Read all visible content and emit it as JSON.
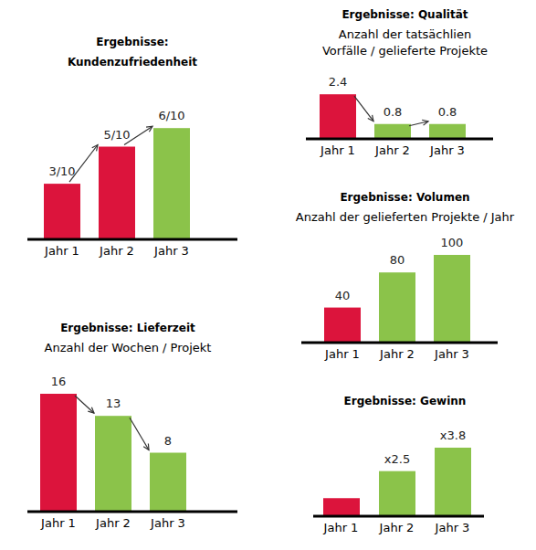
{
  "chart_data": [
    {
      "type": "bar",
      "title": "Ergebnisse:\nKundenzufriedenheit",
      "categories": [
        "Jahr 1",
        "Jahr 2",
        "Jahr 3"
      ],
      "values": [
        3,
        5,
        6
      ],
      "value_labels": [
        "3/10",
        "5/10",
        "6/10"
      ],
      "colors": [
        "#dc143c",
        "#dc143c",
        "#8bc34a"
      ],
      "ylim": [
        0,
        10
      ],
      "data_labels": true,
      "tick_labels": "x"
    },
    {
      "type": "bar",
      "title": "Ergebnisse: Qualität",
      "subtitle": "Anzahl der tatsächlien\nVorfälle / gelieferte Projekte",
      "categories": [
        "Jahr 1",
        "Jahr 2",
        "Jahr 3"
      ],
      "values": [
        2.4,
        0.8,
        0.8
      ],
      "colors": [
        "#dc143c",
        "#8bc34a",
        "#8bc34a"
      ],
      "ylim": [
        0,
        3
      ],
      "data_labels": true,
      "tick_labels": "x"
    },
    {
      "type": "bar",
      "title": "Ergebnisse: Volumen",
      "subtitle": "Anzahl der gelieferten Projekte / Jahr",
      "categories": [
        "Jahr 1",
        "Jahr 2",
        "Jahr 3"
      ],
      "values": [
        40,
        80,
        100
      ],
      "colors": [
        "#dc143c",
        "#8bc34a",
        "#8bc34a"
      ],
      "ylim": [
        0,
        100
      ],
      "data_labels": true,
      "tick_labels": "x"
    },
    {
      "type": "bar",
      "title": "Ergebnisse: Lieferzeit",
      "subtitle": "Anzahl der Wochen / Projekt",
      "categories": [
        "Jahr 1",
        "Jahr 2",
        "Jahr 3"
      ],
      "values": [
        16,
        13,
        8
      ],
      "colors": [
        "#dc143c",
        "#8bc34a",
        "#8bc34a"
      ],
      "ylim": [
        0,
        16
      ],
      "data_labels": true,
      "tick_labels": "x"
    },
    {
      "type": "bar",
      "title": "Ergebnisse: Gewinn",
      "categories": [
        "Jahr 1",
        "Jahr 2",
        "Jahr 3"
      ],
      "values": [
        1,
        2.5,
        3.8
      ],
      "value_labels": [
        null,
        "x2.5",
        "x3.8"
      ],
      "colors": [
        "#dc143c",
        "#8bc34a",
        "#8bc34a"
      ],
      "ylim": [
        0,
        3.8
      ],
      "data_labels": true,
      "tick_labels": "x"
    }
  ]
}
